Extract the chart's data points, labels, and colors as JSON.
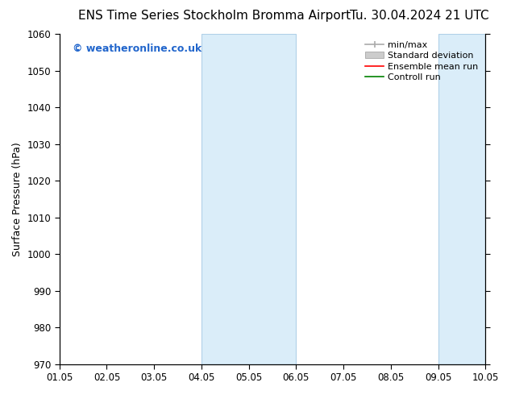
{
  "title_left": "ENS Time Series Stockholm Bromma Airport",
  "title_right": "Tu. 30.04.2024 21 UTC",
  "ylabel": "Surface Pressure (hPa)",
  "xlabel": "",
  "ylim": [
    970,
    1060
  ],
  "yticks": [
    970,
    980,
    990,
    1000,
    1010,
    1020,
    1030,
    1040,
    1050,
    1060
  ],
  "xtick_labels": [
    "01.05",
    "02.05",
    "03.05",
    "04.05",
    "05.05",
    "06.05",
    "07.05",
    "08.05",
    "09.05",
    "10.05"
  ],
  "xtick_positions": [
    0,
    1,
    2,
    3,
    4,
    5,
    6,
    7,
    8,
    9
  ],
  "shaded_regions": [
    {
      "x_start": 3,
      "x_end": 5,
      "color": "#daedf9"
    },
    {
      "x_start": 8,
      "x_end": 9,
      "color": "#daedf9"
    }
  ],
  "shade_line_color": "#b0d0e8",
  "watermark_text": "© weatheronline.co.uk",
  "watermark_color": "#2266cc",
  "background_color": "#ffffff",
  "legend_items": [
    {
      "label": "min/max",
      "color": "#aaaaaa",
      "lw": 1.2
    },
    {
      "label": "Standard deviation",
      "color": "#cccccc",
      "lw": 5
    },
    {
      "label": "Ensemble mean run",
      "color": "#ff0000",
      "lw": 1.2
    },
    {
      "label": "Controll run",
      "color": "#008000",
      "lw": 1.2
    }
  ],
  "title_fontsize": 11,
  "axis_label_fontsize": 9,
  "tick_fontsize": 8.5,
  "legend_fontsize": 8,
  "watermark_fontsize": 9
}
